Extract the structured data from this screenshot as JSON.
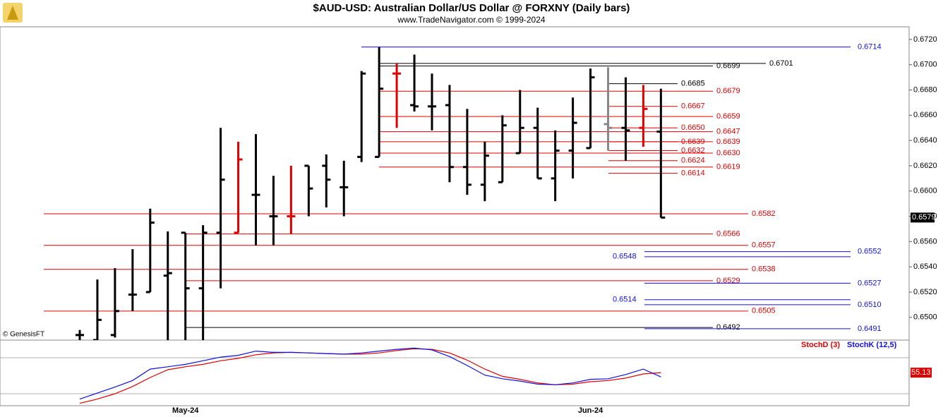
{
  "chart_data": {
    "type": "ohlc",
    "title": "$AUD-USD:  Australian Dollar/US Dollar @ FORXNY  (Daily bars)",
    "subtitle": "www.TradeNavigator.com © 1999-2024",
    "watermark": "© GenesisFT",
    "categories": [
      null,
      null,
      null,
      null,
      null,
      null,
      "May-24",
      null,
      null,
      null,
      null,
      null,
      null,
      null,
      null,
      null,
      null,
      null,
      null,
      null,
      null,
      null,
      null,
      null,
      null,
      null,
      null,
      null,
      null,
      "Jun-24",
      null,
      null,
      null,
      null
    ],
    "open": [
      0.6486,
      0.6482,
      0.6486,
      0.6518,
      0.652,
      0.6533,
      0.6567,
      0.6523,
      0.6567,
      0.6567,
      0.6597,
      0.658,
      0.658,
      0.662,
      0.662,
      0.6603,
      0.6627,
      0.6627,
      0.6693,
      0.6668,
      0.6667,
      0.6668,
      0.6619,
      0.6605,
      0.6607,
      0.663,
      0.665,
      0.661,
      0.6632,
      0.6634,
      0.6653,
      0.665,
      0.665,
      0.6647
    ],
    "high": [
      0.649,
      0.653,
      0.6539,
      0.6554,
      0.6586,
      0.6568,
      0.6567,
      0.6573,
      0.665,
      0.6639,
      0.6645,
      0.6612,
      0.662,
      0.662,
      0.6629,
      0.6624,
      0.6695,
      0.6714,
      0.6701,
      0.6708,
      0.6693,
      0.6684,
      0.6665,
      0.6639,
      0.666,
      0.668,
      0.6666,
      0.6648,
      0.6674,
      0.6697,
      0.6698,
      0.669,
      0.6684,
      0.6681
    ],
    "low": [
      0.6482,
      0.6482,
      0.6484,
      0.6505,
      0.652,
      0.6482,
      0.6482,
      0.6482,
      0.6523,
      0.6567,
      0.6557,
      0.6557,
      0.6566,
      0.658,
      0.6587,
      0.658,
      0.6623,
      0.6627,
      0.665,
      0.6663,
      0.6648,
      0.6607,
      0.6597,
      0.6592,
      0.6607,
      0.663,
      0.661,
      0.6592,
      0.661,
      0.6634,
      0.6632,
      0.6624,
      0.6635,
      0.6579
    ],
    "close": [
      0.6486,
      0.6498,
      0.6505,
      0.6518,
      0.6575,
      0.6535,
      0.6523,
      0.6567,
      0.6609,
      0.6625,
      0.6597,
      0.658,
      0.658,
      0.6602,
      0.6609,
      0.6603,
      0.6693,
      0.6681,
      0.6693,
      0.6667,
      0.6667,
      0.6619,
      0.6605,
      0.6628,
      0.6652,
      0.665,
      0.661,
      0.6632,
      0.6654,
      0.669,
      0.665,
      0.6648,
      0.6665,
      0.6579
    ],
    "colors": [
      "#000",
      "#000",
      "#000",
      "#000",
      "#000",
      "#000",
      "#000",
      "#000",
      "#000",
      "#e00000",
      "#000",
      "#000",
      "#e00000",
      "#000",
      "#000",
      "#000",
      "#000",
      "#000",
      "#e00000",
      "#000",
      "#000",
      "#000",
      "#000",
      "#000",
      "#000",
      "#000",
      "#000",
      "#000",
      "#000",
      "#000",
      "#888888",
      "#000",
      "#e00000",
      "#000"
    ],
    "ylim": [
      0.6482,
      0.673
    ],
    "yticks": [
      {
        "value": 0.65,
        "label": "0.6500"
      },
      {
        "value": 0.652,
        "label": "0.6520"
      },
      {
        "value": 0.654,
        "label": "0.6540"
      },
      {
        "value": 0.656,
        "label": "0.6560"
      },
      {
        "value": 0.658,
        "label": "0.6580"
      },
      {
        "value": 0.66,
        "label": "0.6600"
      },
      {
        "value": 0.662,
        "label": "0.6620"
      },
      {
        "value": 0.664,
        "label": "0.6640"
      },
      {
        "value": 0.666,
        "label": "0.6660"
      },
      {
        "value": 0.668,
        "label": "0.6680"
      },
      {
        "value": 0.67,
        "label": "0.6700"
      },
      {
        "value": 0.672,
        "label": "0.6720"
      }
    ],
    "levels": [
      {
        "value": 0.6714,
        "color": "#1010e0"
      },
      {
        "value": 0.6701,
        "color": "#000"
      },
      {
        "value": 0.6699,
        "color": "#000"
      },
      {
        "value": 0.6685,
        "color": "#000"
      },
      {
        "value": 0.6679,
        "color": "#e00000"
      },
      {
        "value": 0.6667,
        "color": "#e00000"
      },
      {
        "value": 0.6659,
        "color": "#e00000"
      },
      {
        "value": 0.665,
        "label": "0.6650",
        "color": "#e00000"
      },
      {
        "value": 0.6647,
        "color": "#e00000"
      },
      {
        "value": 0.6639,
        "color": "#e00000"
      },
      {
        "value": 0.6639,
        "color": "#e00000"
      },
      {
        "value": 0.6632,
        "color": "#e00000"
      },
      {
        "value": 0.663,
        "label": "0.6630",
        "color": "#e00000"
      },
      {
        "value": 0.6624,
        "color": "#e00000"
      },
      {
        "value": 0.6619,
        "color": "#e00000"
      },
      {
        "value": 0.6614,
        "color": "#e00000"
      },
      {
        "value": 0.6582,
        "color": "#e00000"
      },
      {
        "value": 0.6566,
        "color": "#e00000"
      },
      {
        "value": 0.6557,
        "color": "#e00000"
      },
      {
        "value": 0.6552,
        "color": "#1010e0"
      },
      {
        "value": 0.6548,
        "color": "#1010e0"
      },
      {
        "value": 0.6538,
        "color": "#e00000"
      },
      {
        "value": 0.6529,
        "color": "#e00000"
      },
      {
        "value": 0.6527,
        "color": "#1010e0"
      },
      {
        "value": 0.6514,
        "color": "#1010e0"
      },
      {
        "value": 0.651,
        "label": "0.6510",
        "color": "#1010e0"
      },
      {
        "value": 0.6505,
        "color": "#e00000"
      },
      {
        "value": 0.6492,
        "color": "#000"
      },
      {
        "value": 0.6491,
        "color": "#1010e0"
      }
    ],
    "indicator": {
      "type": "line",
      "ylim": [
        0,
        100
      ],
      "grid_values": [
        80,
        20
      ],
      "series": [
        {
          "name": "StochD (3)",
          "color": "#e00000",
          "values": [
            4,
            11,
            20,
            32,
            47,
            60,
            65,
            69,
            75,
            79,
            85,
            88,
            89,
            88,
            87,
            86,
            86,
            88,
            92,
            95,
            94,
            88,
            76,
            61,
            49,
            44,
            38,
            35,
            36,
            40,
            42,
            46,
            53,
            55.13
          ]
        },
        {
          "name": "StochK (12,5)",
          "color": "#1010e0",
          "values": [
            11,
            21,
            31,
            42,
            61,
            65,
            69,
            75,
            81,
            84,
            91,
            89,
            89,
            88,
            87,
            86,
            88,
            91,
            94,
            96,
            93,
            82,
            67,
            51,
            45,
            41,
            36,
            35,
            38,
            44,
            45,
            52,
            61,
            48
          ]
        }
      ]
    }
  }
}
